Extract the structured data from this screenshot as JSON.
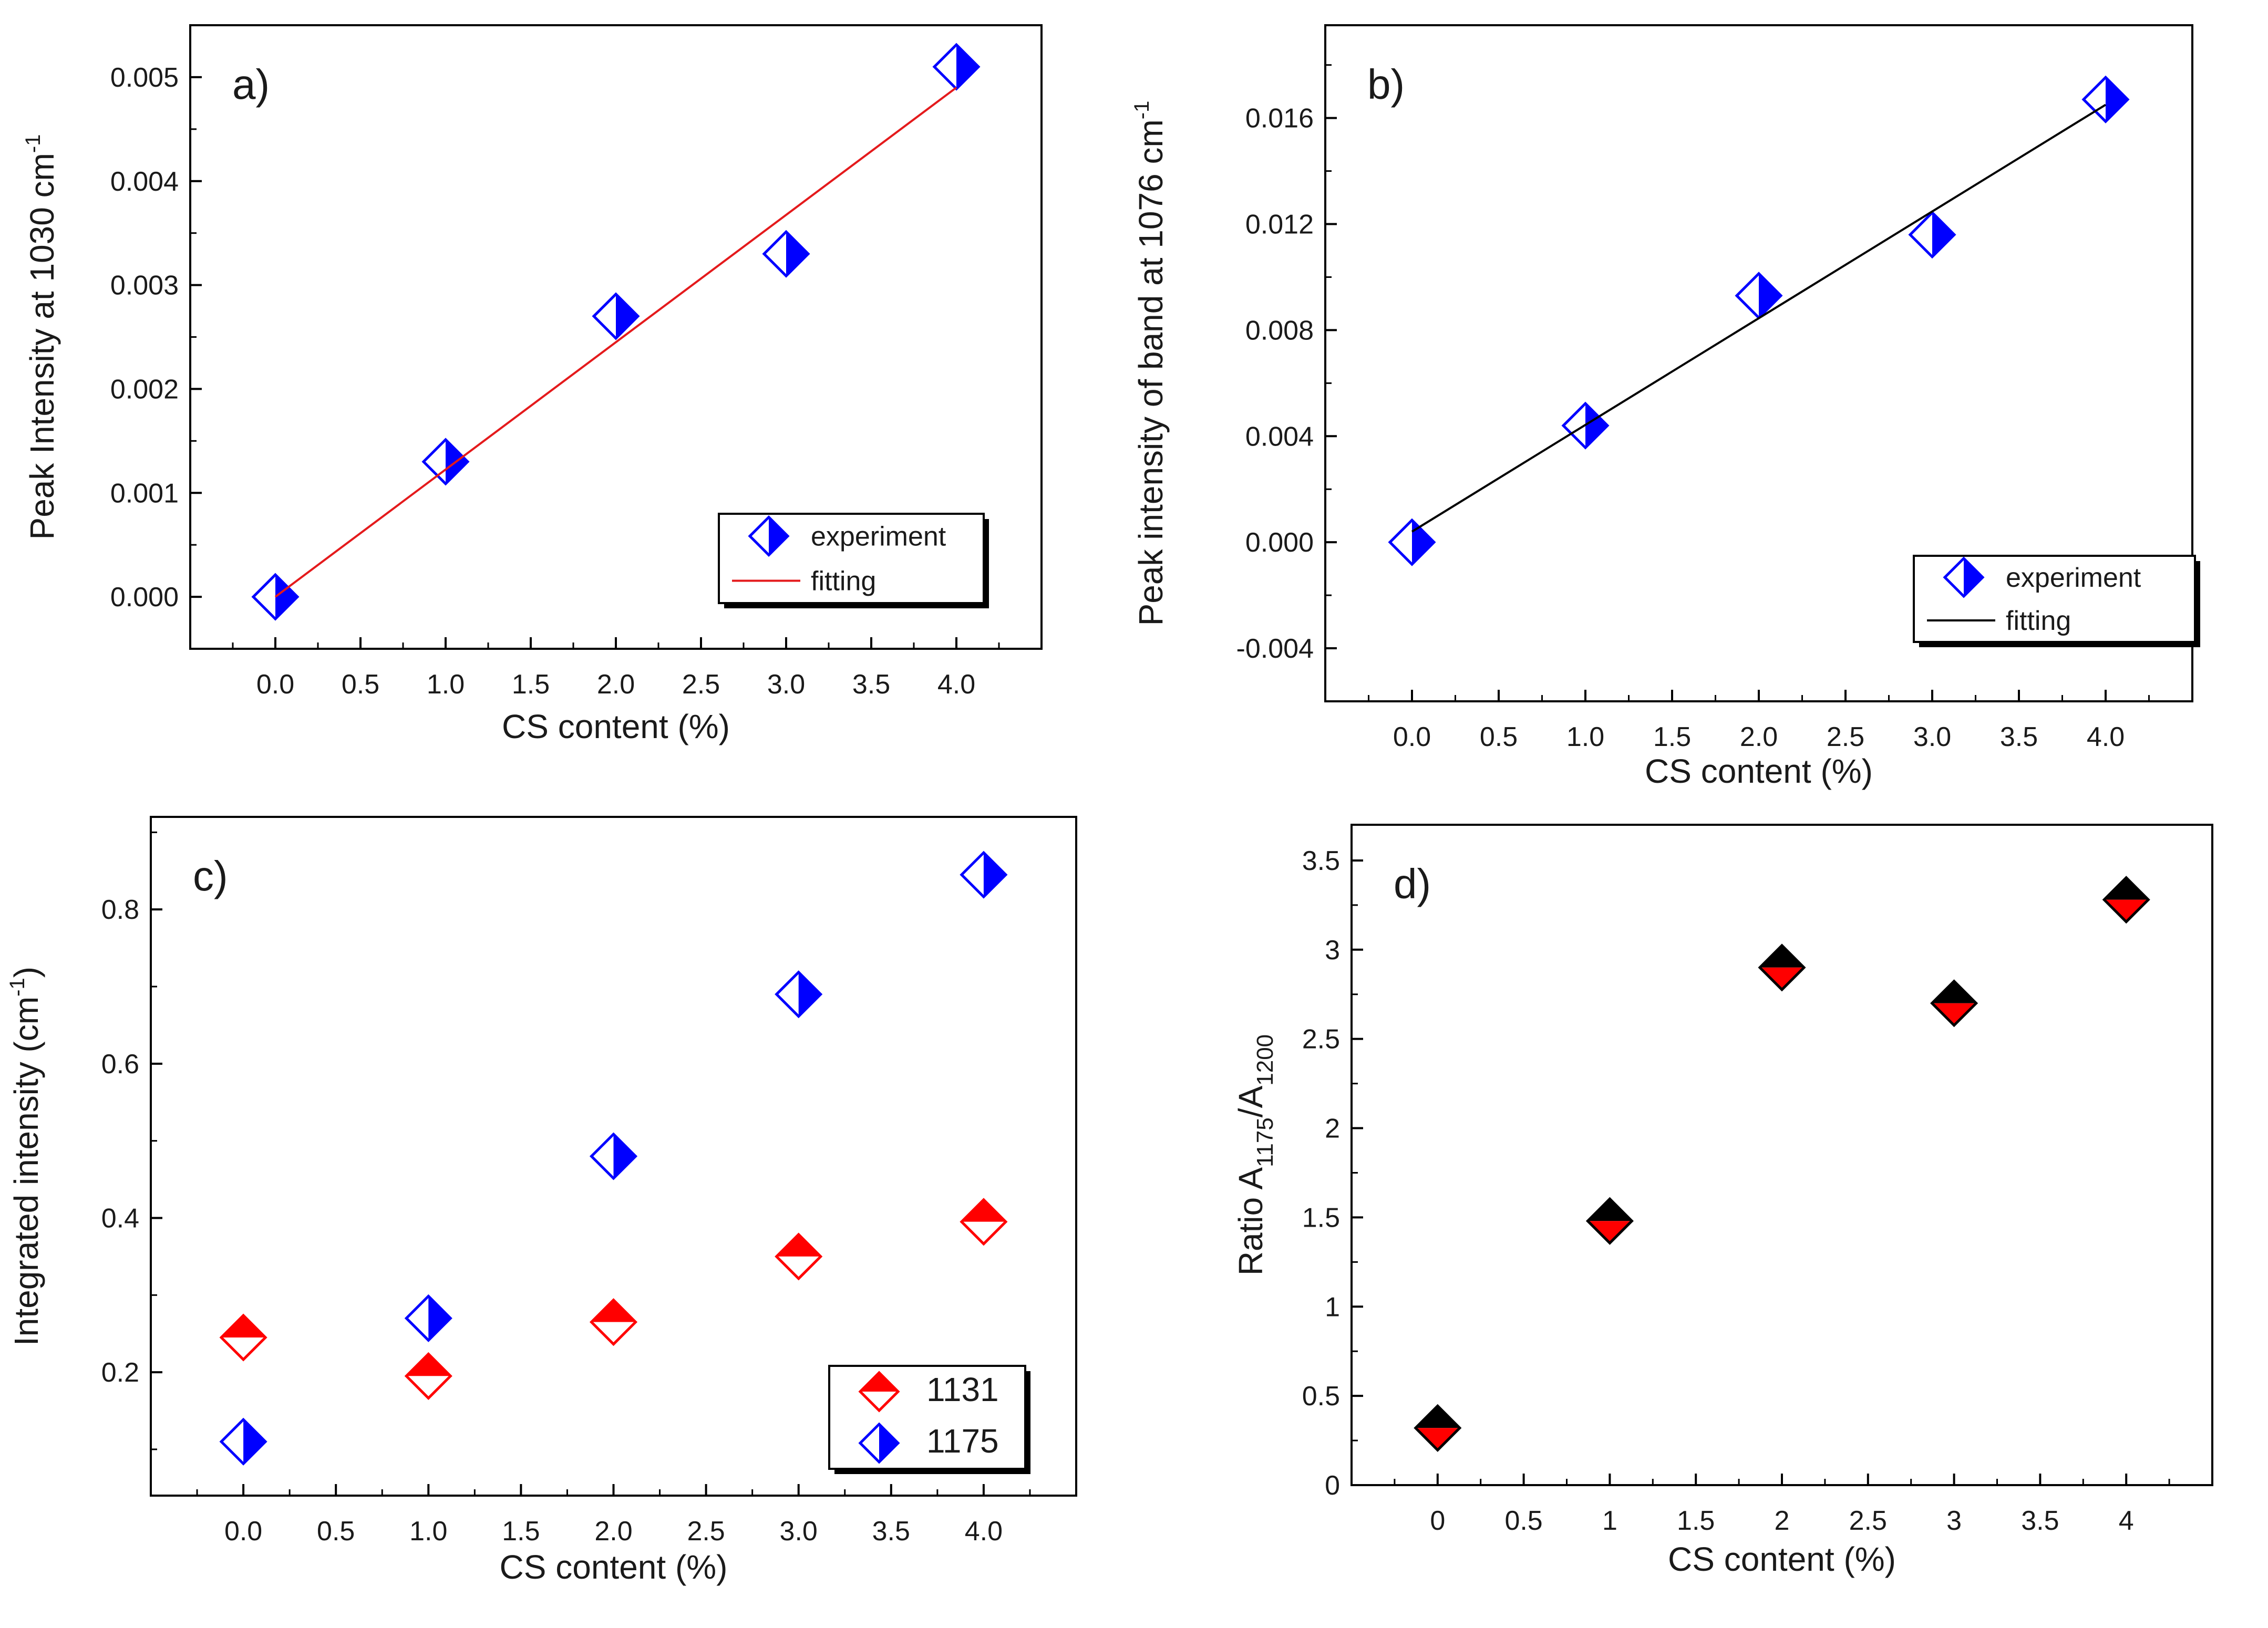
{
  "chart_data": [
    {
      "panel_label": "a)",
      "type": "scatter",
      "xlabel": "CS content (%)",
      "ylabel": "Peak Intensity at 1030 cm",
      "ylabel_sup": "-1",
      "xlim": [
        -0.5,
        4.5
      ],
      "ylim": [
        -0.0005,
        0.0055
      ],
      "xticks": [
        "0.0",
        "0.5",
        "1.0",
        "1.5",
        "2.0",
        "2.5",
        "3.0",
        "3.5",
        "4.0"
      ],
      "yticks": [
        "0.000",
        "0.001",
        "0.002",
        "0.003",
        "0.004",
        "0.005"
      ],
      "legend": {
        "position": "lower-right",
        "entries": [
          "experiment",
          "fitting"
        ]
      },
      "series": [
        {
          "name": "experiment",
          "marker": "diamond-half-left",
          "color": "#0000ff",
          "x": [
            0,
            1,
            2,
            3,
            4
          ],
          "y": [
            0.0,
            0.0013,
            0.0027,
            0.0033,
            0.0051
          ]
        },
        {
          "name": "fitting",
          "kind": "line",
          "color": "#e41a1c",
          "x": [
            0,
            4
          ],
          "y": [
            0.0,
            0.0049
          ]
        }
      ]
    },
    {
      "panel_label": "b)",
      "type": "scatter",
      "xlabel": "CS content (%)",
      "ylabel": "Peak intensity of band at 1076 cm",
      "ylabel_sup": "-1",
      "xlim": [
        -0.5,
        4.5
      ],
      "ylim": [
        -0.006,
        0.0195
      ],
      "xticks": [
        "0.0",
        "0.5",
        "1.0",
        "1.5",
        "2.0",
        "2.5",
        "3.0",
        "3.5",
        "4.0"
      ],
      "yticks": [
        "-0.004",
        "0.000",
        "0.004",
        "0.008",
        "0.012",
        "0.016"
      ],
      "legend": {
        "position": "lower-right",
        "entries": [
          "experiment",
          "fitting"
        ]
      },
      "series": [
        {
          "name": "experiment",
          "marker": "diamond-half-left",
          "color": "#0000ff",
          "x": [
            0,
            1,
            2,
            3,
            4
          ],
          "y": [
            0.0,
            0.0044,
            0.0093,
            0.0116,
            0.0167
          ]
        },
        {
          "name": "fitting",
          "kind": "line",
          "color": "#000000",
          "x": [
            0,
            4
          ],
          "y": [
            0.0004,
            0.0165
          ]
        }
      ]
    },
    {
      "panel_label": "c)",
      "type": "scatter",
      "xlabel": "CS content (%)",
      "ylabel": "Integrated intensity (cm",
      "ylabel_sup": "-1",
      "ylabel_tail": ")",
      "xlim": [
        -0.5,
        4.5
      ],
      "ylim": [
        0.04,
        0.92
      ],
      "xticks": [
        "0.0",
        "0.5",
        "1.0",
        "1.5",
        "2.0",
        "2.5",
        "3.0",
        "3.5",
        "4.0"
      ],
      "yticks": [
        "0.2",
        "0.4",
        "0.6",
        "0.8"
      ],
      "legend": {
        "position": "lower-right",
        "entries": [
          "1131",
          "1175"
        ]
      },
      "series": [
        {
          "name": "1131",
          "marker": "diamond-half-top",
          "color": "#ff0000",
          "x": [
            0,
            1,
            2,
            3,
            4
          ],
          "y": [
            0.245,
            0.195,
            0.265,
            0.35,
            0.395
          ]
        },
        {
          "name": "1175",
          "marker": "diamond-half-left",
          "color": "#0000ff",
          "x": [
            0,
            1,
            2,
            3,
            4
          ],
          "y": [
            0.11,
            0.27,
            0.48,
            0.69,
            0.845
          ]
        }
      ]
    },
    {
      "panel_label": "d)",
      "type": "scatter",
      "xlabel": "CS content (%)",
      "ylabel": "Ratio A",
      "ylabel_sub1": "1175",
      "ylabel_mid": "/A",
      "ylabel_sub2": "1200",
      "xlim": [
        -0.5,
        4.5
      ],
      "ylim": [
        0,
        3.7
      ],
      "xticks": [
        "0",
        "0.5",
        "1",
        "1.5",
        "2",
        "2.5",
        "3",
        "3.5",
        "4"
      ],
      "yticks": [
        "0",
        "0.5",
        "1",
        "1.5",
        "2",
        "2.5",
        "3",
        "3.5"
      ],
      "series": [
        {
          "name": "ratio",
          "marker": "diamond-half-top-black",
          "color": "#000000",
          "x": [
            0,
            1,
            2,
            3,
            4
          ],
          "y": [
            0.32,
            1.48,
            2.9,
            2.7,
            3.28
          ]
        }
      ]
    }
  ]
}
